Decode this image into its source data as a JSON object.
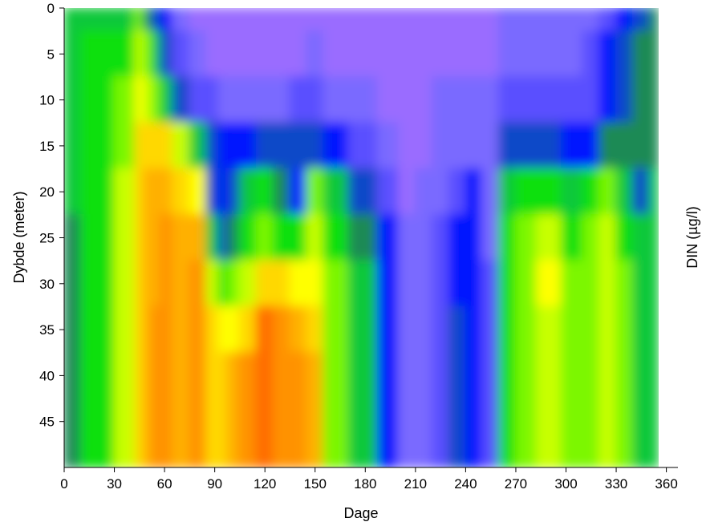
{
  "chart_data": {
    "type": "heatmap",
    "title": "",
    "xlabel": "Dage",
    "ylabel": "Dybde (meter)",
    "colorbar_label": "DIN (µg/l)",
    "xlim": [
      0,
      355
    ],
    "ylim": [
      50,
      0
    ],
    "x_ticks": [
      0,
      30,
      60,
      90,
      120,
      150,
      180,
      210,
      240,
      270,
      300,
      330,
      360
    ],
    "y_ticks": [
      0,
      5,
      10,
      15,
      20,
      25,
      30,
      35,
      40,
      45
    ],
    "grid": false,
    "legend": "none",
    "colormap": [
      "#9a6cff",
      "#7a6aff",
      "#5a50ff",
      "#0018ff",
      "#0a48c8",
      "#1f8a55",
      "#0fc83a",
      "#10e010",
      "#7cf700",
      "#c8ff00",
      "#ffff00",
      "#ffd800",
      "#ffb000",
      "#ff9200",
      "#ff6a00",
      "#ff2a00"
    ],
    "surface_depths": [
      0,
      5,
      10,
      15,
      20,
      25,
      30,
      35,
      40,
      45,
      50
    ],
    "surface_level_x": [
      0,
      20,
      40,
      45,
      50,
      55,
      60,
      70,
      80,
      90,
      95,
      100,
      110,
      120,
      130,
      140,
      150,
      160,
      180,
      195,
      205,
      215,
      225,
      235,
      245,
      255,
      265,
      275,
      290,
      305,
      315,
      325,
      335,
      345,
      355
    ],
    "surface_level_z": [
      [
        6,
        6,
        6,
        8,
        5,
        4,
        3,
        1,
        0,
        0,
        0,
        0,
        0,
        0,
        0,
        0,
        0,
        0,
        0,
        0,
        0,
        0,
        0,
        0,
        0,
        0,
        1,
        1,
        1,
        1,
        1,
        2,
        3,
        4,
        5
      ],
      [
        6,
        7,
        7,
        9,
        8,
        6,
        4,
        2,
        1,
        0,
        0,
        0,
        0,
        0,
        0,
        0,
        1,
        0,
        0,
        0,
        0,
        0,
        0,
        0,
        0,
        0,
        1,
        1,
        1,
        1,
        2,
        3,
        4,
        5,
        5
      ],
      [
        6,
        7,
        8,
        10,
        9,
        8,
        6,
        4,
        2,
        2,
        1,
        1,
        1,
        1,
        1,
        2,
        2,
        1,
        1,
        0,
        0,
        0,
        1,
        1,
        1,
        1,
        2,
        2,
        2,
        2,
        2,
        3,
        4,
        5,
        5
      ],
      [
        6,
        7,
        8,
        11,
        11,
        11,
        11,
        9,
        6,
        4,
        3,
        3,
        3,
        4,
        4,
        4,
        4,
        3,
        2,
        1,
        0,
        0,
        1,
        1,
        1,
        1,
        4,
        4,
        4,
        3,
        3,
        5,
        5,
        5,
        5
      ],
      [
        6,
        7,
        9,
        11,
        12,
        12,
        12,
        11,
        10,
        4,
        3,
        4,
        6,
        7,
        5,
        3,
        8,
        6,
        4,
        2,
        0,
        1,
        1,
        2,
        3,
        1,
        6,
        7,
        7,
        6,
        7,
        8,
        6,
        4,
        6
      ],
      [
        5,
        7,
        9,
        11,
        12,
        12,
        13,
        12,
        12,
        6,
        4,
        5,
        7,
        8,
        7,
        7,
        9,
        7,
        5,
        3,
        1,
        1,
        2,
        3,
        3,
        1,
        7,
        8,
        9,
        7,
        8,
        9,
        7,
        6,
        6
      ],
      [
        5,
        7,
        9,
        11,
        12,
        12,
        13,
        12,
        13,
        9,
        7,
        8,
        9,
        11,
        11,
        10,
        10,
        8,
        6,
        3,
        1,
        1,
        2,
        3,
        3,
        2,
        7,
        8,
        10,
        8,
        8,
        9,
        8,
        6,
        6
      ],
      [
        5,
        7,
        9,
        11,
        12,
        13,
        13,
        12,
        13,
        11,
        10,
        10,
        11,
        14,
        13,
        12,
        11,
        8,
        6,
        3,
        1,
        1,
        2,
        4,
        3,
        2,
        7,
        8,
        9,
        8,
        8,
        9,
        8,
        6,
        6
      ],
      [
        5,
        7,
        9,
        11,
        12,
        13,
        13,
        12,
        13,
        11,
        11,
        12,
        13,
        14,
        13,
        13,
        12,
        8,
        6,
        3,
        1,
        1,
        2,
        4,
        3,
        2,
        7,
        8,
        9,
        8,
        8,
        9,
        8,
        6,
        6
      ],
      [
        5,
        7,
        9,
        11,
        12,
        13,
        13,
        12,
        13,
        11,
        11,
        12,
        13,
        14,
        13,
        13,
        12,
        8,
        6,
        3,
        1,
        1,
        2,
        4,
        3,
        2,
        7,
        8,
        9,
        8,
        8,
        9,
        8,
        6,
        6
      ],
      [
        5,
        7,
        9,
        11,
        12,
        13,
        13,
        12,
        13,
        11,
        11,
        12,
        13,
        14,
        13,
        13,
        12,
        8,
        6,
        3,
        1,
        1,
        2,
        4,
        3,
        2,
        7,
        8,
        9,
        8,
        8,
        9,
        8,
        6,
        6
      ]
    ]
  }
}
